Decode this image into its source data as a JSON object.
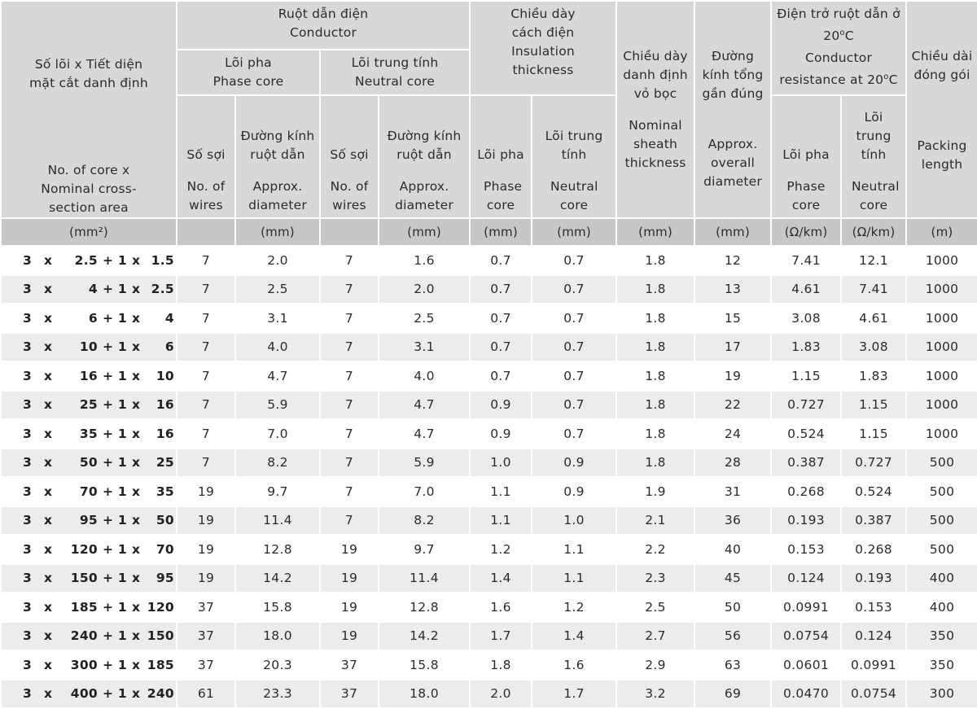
{
  "headers": {
    "col_size": {
      "vi": "Số lõi x Tiết diện mặt cắt danh định",
      "en": "No. of core x Nominal cross-section area",
      "unit": "(mm²)"
    },
    "conductor": {
      "vi": "Ruột dẫn điện",
      "en": "Conductor"
    },
    "phase_core": {
      "vi": "Lõi pha",
      "en": "Phase core"
    },
    "neutral_core": {
      "vi": "Lõi trung tính",
      "en": "Neutral core"
    },
    "insulation": {
      "vi": "Chiều dày cách điện",
      "en": "Insulation thickness"
    },
    "sheath": {
      "vi": "Chiều dày danh định vỏ bọc",
      "en": "Nominal sheath thickness",
      "unit": "(mm)"
    },
    "overall_dia": {
      "vi": "Đường kính tổng gần đúng",
      "en": "Approx. overall diameter",
      "unit": "(mm)"
    },
    "resistance": {
      "vi_pre": "Điện trở ruột dẫn ở 20",
      "vi_post": "C",
      "en_pre": "Conductor resistance at 20",
      "en_post": "C",
      "deg": "o"
    },
    "packing": {
      "vi": "Chiều dài đóng gói",
      "en": "Packing length",
      "unit": "(m)"
    },
    "wires": {
      "vi": "Số sợi",
      "en": "No. of wires"
    },
    "diameter": {
      "vi": "Đường kính ruột dẫn",
      "en": "Approx. diameter",
      "unit": "(mm)"
    },
    "ins_phase": {
      "vi": "Lõi pha",
      "en": "Phase core",
      "unit": "(mm)"
    },
    "ins_neutral": {
      "vi": "Lõi trung tính",
      "en": "Neutral core",
      "unit": "(mm)"
    },
    "res_phase": {
      "vi": "Lõi pha",
      "en": "Phase core",
      "unit": "(Ω/km)"
    },
    "res_neutral": {
      "vi": "Lõi trung tính",
      "en": "Neutral core",
      "unit": "(Ω/km)"
    }
  },
  "rows": [
    {
      "n": "3",
      "x": "x",
      "p": "2.5",
      "plus": "+ 1",
      "x2": "x",
      "nt": "1.5",
      "pw": "7",
      "pd": "2.0",
      "nw": "7",
      "nd": "1.6",
      "ip": "0.7",
      "in": "0.7",
      "sh": "1.8",
      "od": "12",
      "rp": "7.41",
      "rn": "12.1",
      "len": "1000"
    },
    {
      "n": "3",
      "x": "x",
      "p": "4",
      "plus": "+ 1",
      "x2": "x",
      "nt": "2.5",
      "pw": "7",
      "pd": "2.5",
      "nw": "7",
      "nd": "2.0",
      "ip": "0.7",
      "in": "0.7",
      "sh": "1.8",
      "od": "13",
      "rp": "4.61",
      "rn": "7.41",
      "len": "1000"
    },
    {
      "n": "3",
      "x": "x",
      "p": "6",
      "plus": "+ 1",
      "x2": "x",
      "nt": "4",
      "pw": "7",
      "pd": "3.1",
      "nw": "7",
      "nd": "2.5",
      "ip": "0.7",
      "in": "0.7",
      "sh": "1.8",
      "od": "15",
      "rp": "3.08",
      "rn": "4.61",
      "len": "1000"
    },
    {
      "n": "3",
      "x": "x",
      "p": "10",
      "plus": "+ 1",
      "x2": "x",
      "nt": "6",
      "pw": "7",
      "pd": "4.0",
      "nw": "7",
      "nd": "3.1",
      "ip": "0.7",
      "in": "0.7",
      "sh": "1.8",
      "od": "17",
      "rp": "1.83",
      "rn": "3.08",
      "len": "1000"
    },
    {
      "n": "3",
      "x": "x",
      "p": "16",
      "plus": "+ 1",
      "x2": "x",
      "nt": "10",
      "pw": "7",
      "pd": "4.7",
      "nw": "7",
      "nd": "4.0",
      "ip": "0.7",
      "in": "0.7",
      "sh": "1.8",
      "od": "19",
      "rp": "1.15",
      "rn": "1.83",
      "len": "1000"
    },
    {
      "n": "3",
      "x": "x",
      "p": "25",
      "plus": "+ 1",
      "x2": "x",
      "nt": "16",
      "pw": "7",
      "pd": "5.9",
      "nw": "7",
      "nd": "4.7",
      "ip": "0.9",
      "in": "0.7",
      "sh": "1.8",
      "od": "22",
      "rp": "0.727",
      "rn": "1.15",
      "len": "1000"
    },
    {
      "n": "3",
      "x": "x",
      "p": "35",
      "plus": "+ 1",
      "x2": "x",
      "nt": "16",
      "pw": "7",
      "pd": "7.0",
      "nw": "7",
      "nd": "4.7",
      "ip": "0.9",
      "in": "0.7",
      "sh": "1.8",
      "od": "24",
      "rp": "0.524",
      "rn": "1.15",
      "len": "1000"
    },
    {
      "n": "3",
      "x": "x",
      "p": "50",
      "plus": "+ 1",
      "x2": "x",
      "nt": "25",
      "pw": "7",
      "pd": "8.2",
      "nw": "7",
      "nd": "5.9",
      "ip": "1.0",
      "in": "0.9",
      "sh": "1.8",
      "od": "28",
      "rp": "0.387",
      "rn": "0.727",
      "len": "500"
    },
    {
      "n": "3",
      "x": "x",
      "p": "70",
      "plus": "+ 1",
      "x2": "x",
      "nt": "35",
      "pw": "19",
      "pd": "9.7",
      "nw": "7",
      "nd": "7.0",
      "ip": "1.1",
      "in": "0.9",
      "sh": "1.9",
      "od": "31",
      "rp": "0.268",
      "rn": "0.524",
      "len": "500"
    },
    {
      "n": "3",
      "x": "x",
      "p": "95",
      "plus": "+ 1",
      "x2": "x",
      "nt": "50",
      "pw": "19",
      "pd": "11.4",
      "nw": "7",
      "nd": "8.2",
      "ip": "1.1",
      "in": "1.0",
      "sh": "2.1",
      "od": "36",
      "rp": "0.193",
      "rn": "0.387",
      "len": "500"
    },
    {
      "n": "3",
      "x": "x",
      "p": "120",
      "plus": "+ 1",
      "x2": "x",
      "nt": "70",
      "pw": "19",
      "pd": "12.8",
      "nw": "19",
      "nd": "9.7",
      "ip": "1.2",
      "in": "1.1",
      "sh": "2.2",
      "od": "40",
      "rp": "0.153",
      "rn": "0.268",
      "len": "500"
    },
    {
      "n": "3",
      "x": "x",
      "p": "150",
      "plus": "+ 1",
      "x2": "x",
      "nt": "95",
      "pw": "19",
      "pd": "14.2",
      "nw": "19",
      "nd": "11.4",
      "ip": "1.4",
      "in": "1.1",
      "sh": "2.3",
      "od": "45",
      "rp": "0.124",
      "rn": "0.193",
      "len": "400"
    },
    {
      "n": "3",
      "x": "x",
      "p": "185",
      "plus": "+ 1",
      "x2": "x",
      "nt": "120",
      "pw": "37",
      "pd": "15.8",
      "nw": "19",
      "nd": "12.8",
      "ip": "1.6",
      "in": "1.2",
      "sh": "2.5",
      "od": "50",
      "rp": "0.0991",
      "rn": "0.153",
      "len": "400"
    },
    {
      "n": "3",
      "x": "x",
      "p": "240",
      "plus": "+ 1",
      "x2": "x",
      "nt": "150",
      "pw": "37",
      "pd": "18.0",
      "nw": "19",
      "nd": "14.2",
      "ip": "1.7",
      "in": "1.4",
      "sh": "2.7",
      "od": "56",
      "rp": "0.0754",
      "rn": "0.124",
      "len": "350"
    },
    {
      "n": "3",
      "x": "x",
      "p": "300",
      "plus": "+ 1",
      "x2": "x",
      "nt": "185",
      "pw": "37",
      "pd": "20.3",
      "nw": "37",
      "nd": "15.8",
      "ip": "1.8",
      "in": "1.6",
      "sh": "2.9",
      "od": "63",
      "rp": "0.0601",
      "rn": "0.0991",
      "len": "350"
    },
    {
      "n": "3",
      "x": "x",
      "p": "400",
      "plus": "+ 1",
      "x2": "x",
      "nt": "240",
      "pw": "61",
      "pd": "23.3",
      "nw": "37",
      "nd": "18.0",
      "ip": "2.0",
      "in": "1.7",
      "sh": "3.2",
      "od": "69",
      "rp": "0.0470",
      "rn": "0.0754",
      "len": "300"
    }
  ]
}
